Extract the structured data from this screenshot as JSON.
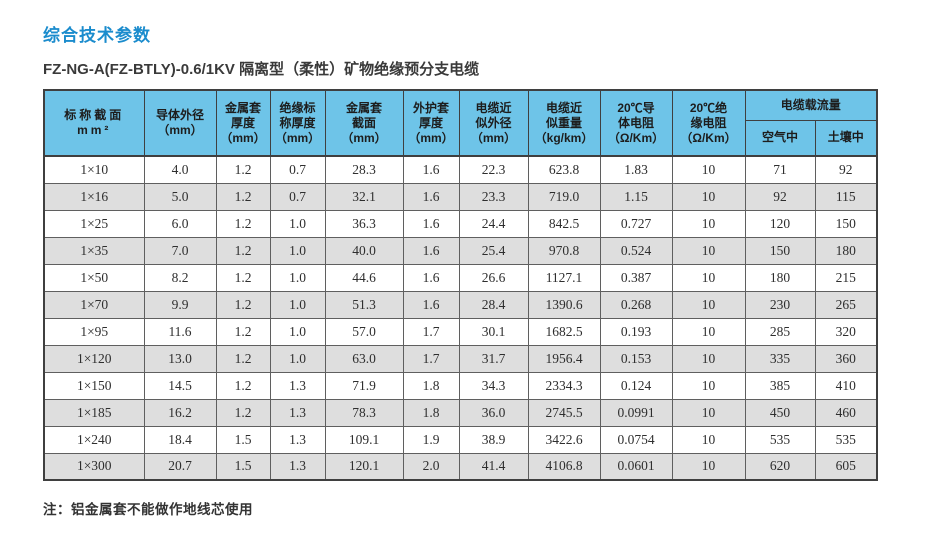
{
  "page": {
    "title": "综合技术参数",
    "subtitle": "FZ-NG-A(FZ-BTLY)-0.6/1KV 隔离型（柔性）矿物绝缘预分支电缆",
    "note": "注：铝金属套不能做作地线芯使用"
  },
  "colors": {
    "accent": "#1b8ccd",
    "header_bg": "#6ec4e8",
    "row_alt_bg": "#dedede",
    "border": "#3f3f3f"
  },
  "table": {
    "columns": [
      {
        "id": "nominal-section",
        "lines": [
          "标称截面",
          "mm²"
        ]
      },
      {
        "id": "conductor-od",
        "lines": [
          "导体外径",
          "（mm）"
        ]
      },
      {
        "id": "metal-sheath-thickness",
        "lines": [
          "金属套",
          "厚度",
          "（mm）"
        ]
      },
      {
        "id": "insulation-thickness",
        "lines": [
          "绝缘标",
          "称厚度",
          "（mm）"
        ]
      },
      {
        "id": "metal-sheath-section",
        "lines": [
          "金属套",
          "截面",
          "（mm）"
        ]
      },
      {
        "id": "outer-sheath-thickness",
        "lines": [
          "外护套",
          "厚度",
          "（mm）"
        ]
      },
      {
        "id": "cable-approx-od",
        "lines": [
          "电缆近",
          "似外径",
          "（mm）"
        ]
      },
      {
        "id": "cable-approx-weight",
        "lines": [
          "电缆近",
          "似重量",
          "（kg/km）"
        ]
      },
      {
        "id": "conductor-resistance-20c",
        "lines": [
          "20℃导",
          "体电阻",
          "（Ω/Km）"
        ]
      },
      {
        "id": "insulation-resistance-20c",
        "lines": [
          "20℃绝",
          "缘电阻",
          "（Ω/Km）"
        ]
      }
    ],
    "ampacity_group": {
      "label": "电缆载流量",
      "sub": [
        "空气中",
        "土壤中"
      ]
    },
    "rows": [
      [
        "1×10",
        "4.0",
        "1.2",
        "0.7",
        "28.3",
        "1.6",
        "22.3",
        "623.8",
        "1.83",
        "10",
        "71",
        "92"
      ],
      [
        "1×16",
        "5.0",
        "1.2",
        "0.7",
        "32.1",
        "1.6",
        "23.3",
        "719.0",
        "1.15",
        "10",
        "92",
        "115"
      ],
      [
        "1×25",
        "6.0",
        "1.2",
        "1.0",
        "36.3",
        "1.6",
        "24.4",
        "842.5",
        "0.727",
        "10",
        "120",
        "150"
      ],
      [
        "1×35",
        "7.0",
        "1.2",
        "1.0",
        "40.0",
        "1.6",
        "25.4",
        "970.8",
        "0.524",
        "10",
        "150",
        "180"
      ],
      [
        "1×50",
        "8.2",
        "1.2",
        "1.0",
        "44.6",
        "1.6",
        "26.6",
        "1127.1",
        "0.387",
        "10",
        "180",
        "215"
      ],
      [
        "1×70",
        "9.9",
        "1.2",
        "1.0",
        "51.3",
        "1.6",
        "28.4",
        "1390.6",
        "0.268",
        "10",
        "230",
        "265"
      ],
      [
        "1×95",
        "11.6",
        "1.2",
        "1.0",
        "57.0",
        "1.7",
        "30.1",
        "1682.5",
        "0.193",
        "10",
        "285",
        "320"
      ],
      [
        "1×120",
        "13.0",
        "1.2",
        "1.0",
        "63.0",
        "1.7",
        "31.7",
        "1956.4",
        "0.153",
        "10",
        "335",
        "360"
      ],
      [
        "1×150",
        "14.5",
        "1.2",
        "1.3",
        "71.9",
        "1.8",
        "34.3",
        "2334.3",
        "0.124",
        "10",
        "385",
        "410"
      ],
      [
        "1×185",
        "16.2",
        "1.2",
        "1.3",
        "78.3",
        "1.8",
        "36.0",
        "2745.5",
        "0.0991",
        "10",
        "450",
        "460"
      ],
      [
        "1×240",
        "18.4",
        "1.5",
        "1.3",
        "109.1",
        "1.9",
        "38.9",
        "3422.6",
        "0.0754",
        "10",
        "535",
        "535"
      ],
      [
        "1×300",
        "20.7",
        "1.5",
        "1.3",
        "120.1",
        "2.0",
        "41.4",
        "4106.8",
        "0.0601",
        "10",
        "620",
        "605"
      ]
    ]
  }
}
